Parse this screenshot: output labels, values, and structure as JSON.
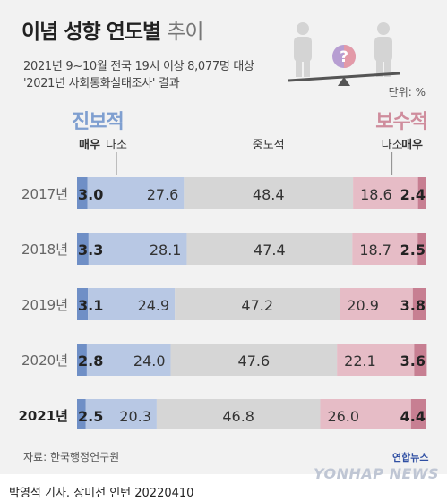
{
  "title_main": "이념 성향 연도별",
  "title_light": "추이",
  "subtitle_line1": "2021년 9~10월 전국 19시 이상 8,077명 대상",
  "subtitle_line2": "'2021년 사회통화실태조사' 결과",
  "unit": "단위: %",
  "progressive_label": "진보적",
  "conservative_label": "보수적",
  "source": "자료: 한국행정연구원",
  "byline": "박영석 기자. 장미선 인턴  20220410",
  "logo_korean": "연합뉴스",
  "logo_english": "YONHAP NEWS",
  "illustration_icon": "question-mark-icon",
  "illustration_mark": "?",
  "colors": {
    "very_progressive": "#6f8fc6",
    "somewhat_progressive": "#b8c8e4",
    "moderate": "#d6d6d6",
    "somewhat_conservative": "#e6bcc6",
    "very_conservative": "#c77f92"
  },
  "chart_data": {
    "type": "bar",
    "stacked": true,
    "horizontal": true,
    "xlim": [
      0,
      100
    ],
    "categories": [
      "2017년",
      "2018년",
      "2019년",
      "2020년",
      "2021년"
    ],
    "highlight_category": "2021년",
    "series": [
      {
        "name": "매우",
        "values": [
          3.0,
          3.3,
          3.1,
          2.8,
          2.5
        ]
      },
      {
        "name": "다소",
        "values": [
          27.6,
          28.1,
          24.9,
          24.0,
          20.3
        ]
      },
      {
        "name": "중도적",
        "values": [
          48.4,
          47.4,
          47.2,
          47.6,
          46.8
        ]
      },
      {
        "name": "다소",
        "values": [
          18.6,
          18.7,
          20.9,
          22.1,
          26.0
        ]
      },
      {
        "name": "매우",
        "values": [
          2.4,
          2.5,
          3.8,
          3.6,
          4.4
        ]
      }
    ]
  }
}
